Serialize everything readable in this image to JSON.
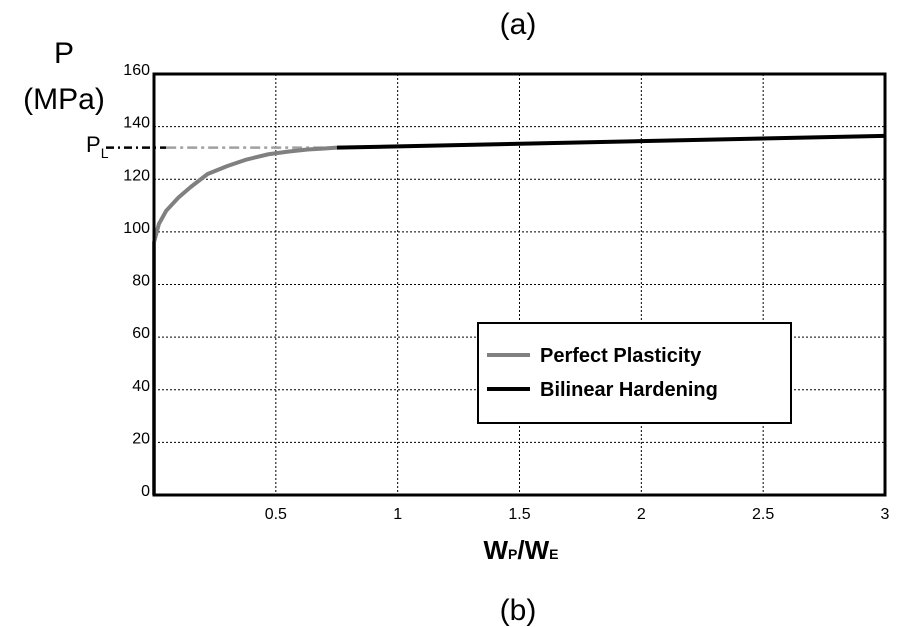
{
  "caption_top": "(a)",
  "caption_bottom": "(b)",
  "chart_data": {
    "type": "line",
    "ylabel_line1": "P",
    "ylabel_line2": "(MPa)",
    "xlabel_main_1": "W",
    "xlabel_sub_1": "P",
    "xlabel_slash": "/",
    "xlabel_main_2": "W",
    "xlabel_sub_2": "E",
    "xlim": [
      0,
      3
    ],
    "ylim": [
      0,
      160
    ],
    "x_ticks": [
      0.5,
      1,
      1.5,
      2,
      2.5,
      3
    ],
    "x_tick_labels": [
      "0.5",
      "1",
      "1.5",
      "2",
      "2.5",
      "3"
    ],
    "y_ticks": [
      0,
      20,
      40,
      60,
      80,
      100,
      120,
      140,
      160
    ],
    "y_tick_labels": [
      "0",
      "20",
      "40",
      "60",
      "80",
      "100",
      "120",
      "140",
      "160"
    ],
    "grid": true,
    "pl_label_main": "P",
    "pl_label_sub": "L",
    "pl_value": 132,
    "legend_placement": "lower-right",
    "series": [
      {
        "name": "Perfect Plasticity",
        "color": "#808080",
        "x": [
          0,
          0,
          0.02,
          0.05,
          0.1,
          0.15,
          0.22,
          0.3,
          0.38,
          0.47,
          0.55,
          0.63,
          0.7,
          0.75
        ],
        "y": [
          0,
          96,
          103,
          108,
          113,
          117,
          122,
          125,
          127.5,
          129.5,
          130.5,
          131.3,
          131.7,
          132
        ]
      },
      {
        "name": "Bilinear Hardening",
        "color": "#000000",
        "x": [
          0.75,
          3
        ],
        "y": [
          132,
          136.5
        ]
      }
    ],
    "pl_dash_line": {
      "color_black": "#000000",
      "color_gray": "#a0a0a0",
      "x_black_end": 0.05,
      "x_end": 0.75
    }
  }
}
